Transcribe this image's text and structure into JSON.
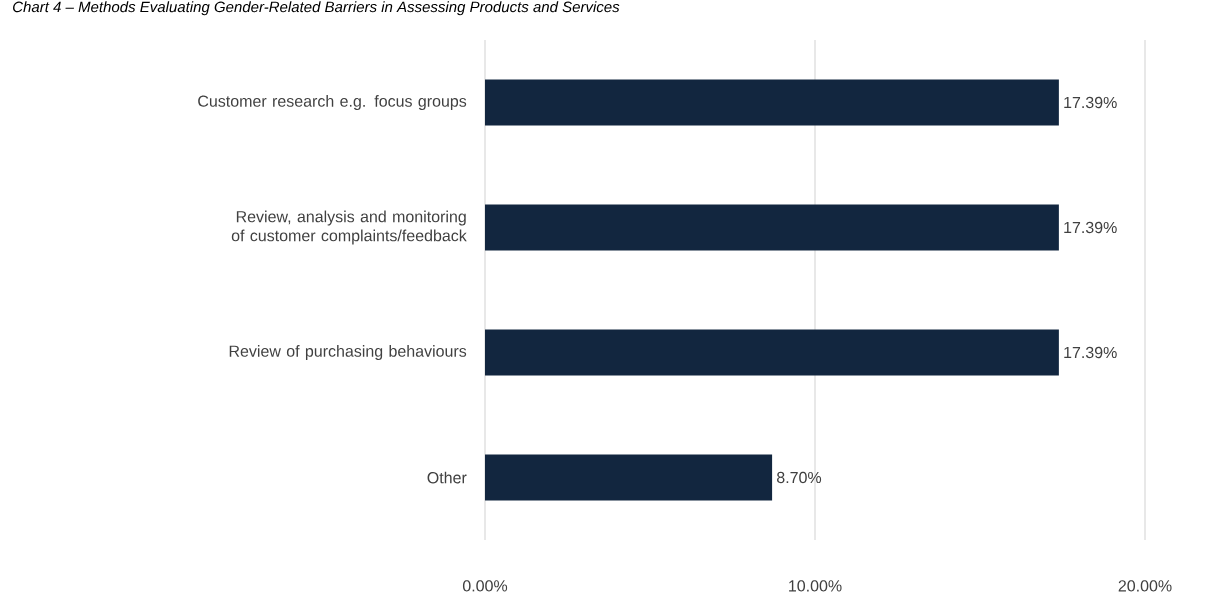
{
  "chart_data": {
    "type": "bar",
    "orientation": "horizontal",
    "title": "Chart 4 – Methods Evaluating Gender-Related Barriers in Assessing Products and Services",
    "categories": [
      "Customer research e.g. focus groups",
      "Review, analysis and monitoring of customer complaints/feedback",
      "Review of purchasing behaviours",
      "Other"
    ],
    "values": [
      17.39,
      17.39,
      17.39,
      8.7
    ],
    "value_labels": [
      "17.39%",
      "17.39%",
      "17.39%",
      "8.70%"
    ],
    "color": "#12263f",
    "xlim": [
      0,
      20
    ],
    "xticks": [
      {
        "value": 0,
        "label": "0.00%"
      },
      {
        "value": 10,
        "label": "10.00%"
      },
      {
        "value": 20,
        "label": "20.00%"
      }
    ],
    "grid": "x"
  }
}
